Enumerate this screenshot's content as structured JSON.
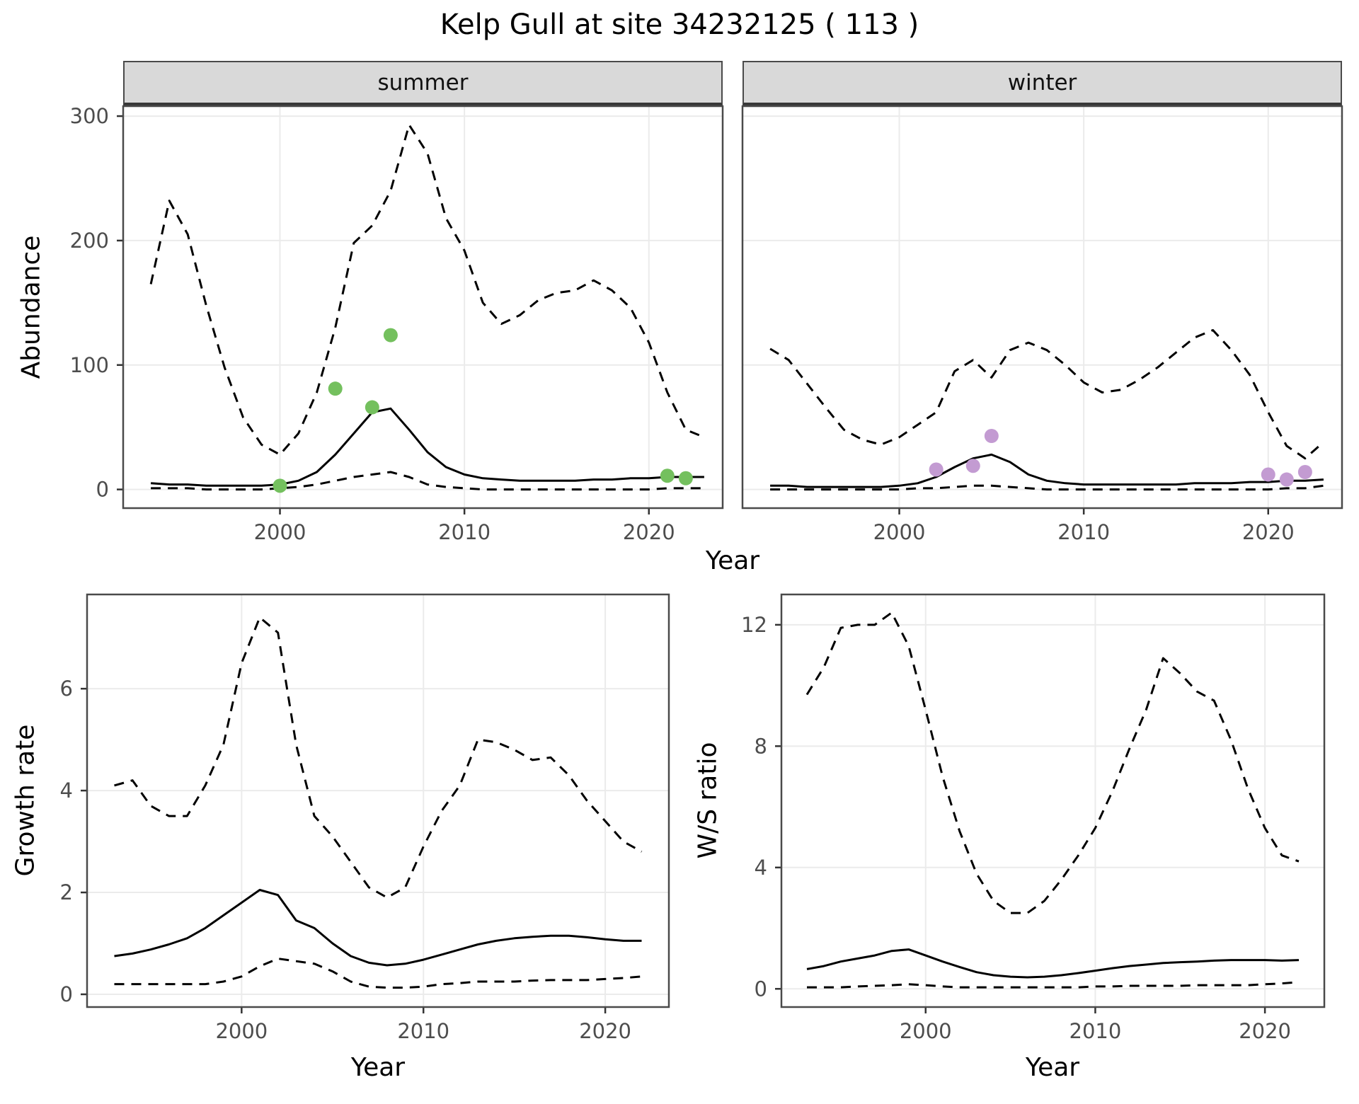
{
  "title": "Kelp Gull at site 34232125 ( 113 )",
  "axis_labels": {
    "abundance_y": "Abundance",
    "top_x": "Year",
    "growth_y": "Growth rate",
    "growth_x": "Year",
    "ws_y": "W/S ratio",
    "ws_x": "Year"
  },
  "colors": {
    "line": "#000000",
    "grid": "#ebebeb",
    "tick_text": "#4d4d4d",
    "tick_mark": "#333333",
    "panel_border": "#4a4a4a",
    "strip_background": "#d9d9d9"
  },
  "chart_data": [
    {
      "id": "abundance-summer",
      "type": "line",
      "facet_label": "summer",
      "xlabel": "Year",
      "ylabel": "Abundance",
      "xlim": [
        1991.5,
        2024
      ],
      "ylim": [
        -15,
        308
      ],
      "xticks": [
        2000,
        2010,
        2020
      ],
      "yticks": [
        0,
        100,
        200,
        300
      ],
      "grid": true,
      "x": [
        1993,
        1994,
        1995,
        1996,
        1997,
        1998,
        1999,
        2000,
        2001,
        2002,
        2003,
        2004,
        2005,
        2006,
        2007,
        2008,
        2009,
        2010,
        2011,
        2012,
        2013,
        2014,
        2015,
        2016,
        2017,
        2018,
        2019,
        2020,
        2021,
        2022,
        2023
      ],
      "series": [
        {
          "name": "upper-ci",
          "style": "dashed",
          "values": [
            165,
            232,
            205,
            148,
            98,
            58,
            36,
            28,
            45,
            78,
            130,
            198,
            212,
            240,
            293,
            270,
            218,
            192,
            150,
            133,
            140,
            152,
            158,
            160,
            168,
            160,
            146,
            118,
            78,
            48,
            42
          ]
        },
        {
          "name": "estimate",
          "style": "solid",
          "values": [
            5,
            4,
            4,
            3,
            3,
            3,
            3,
            4,
            7,
            14,
            28,
            45,
            62,
            65,
            48,
            30,
            18,
            12,
            9,
            8,
            7,
            7,
            7,
            7,
            8,
            8,
            9,
            9,
            10,
            10,
            10
          ]
        },
        {
          "name": "lower-ci",
          "style": "dashed",
          "values": [
            1,
            1,
            1,
            0,
            0,
            0,
            0,
            1,
            2,
            4,
            7,
            10,
            12,
            14,
            10,
            4,
            2,
            1,
            0,
            0,
            0,
            0,
            0,
            0,
            0,
            0,
            0,
            0,
            1,
            1,
            1
          ]
        }
      ],
      "points": {
        "name": "observed-counts-summer",
        "color": "#74c05e",
        "data": [
          [
            2000,
            3
          ],
          [
            2003,
            81
          ],
          [
            2005,
            66
          ],
          [
            2006,
            124
          ],
          [
            2021,
            11
          ],
          [
            2022,
            9
          ]
        ]
      }
    },
    {
      "id": "abundance-winter",
      "type": "line",
      "facet_label": "winter",
      "xlabel": "Year",
      "ylabel": "Abundance",
      "xlim": [
        1991.5,
        2024
      ],
      "ylim": [
        -15,
        308
      ],
      "xticks": [
        2000,
        2010,
        2020
      ],
      "yticks": [
        0,
        100,
        200,
        300
      ],
      "grid": true,
      "x": [
        1993,
        1994,
        1995,
        1996,
        1997,
        1998,
        1999,
        2000,
        2001,
        2002,
        2003,
        2004,
        2005,
        2006,
        2007,
        2008,
        2009,
        2010,
        2011,
        2012,
        2013,
        2014,
        2015,
        2016,
        2017,
        2018,
        2019,
        2020,
        2021,
        2022,
        2023
      ],
      "series": [
        {
          "name": "upper-ci",
          "style": "dashed",
          "values": [
            113,
            104,
            85,
            66,
            48,
            40,
            36,
            42,
            52,
            62,
            95,
            104,
            90,
            112,
            118,
            112,
            100,
            86,
            78,
            80,
            88,
            98,
            110,
            122,
            128,
            112,
            92,
            62,
            35,
            25,
            38
          ]
        },
        {
          "name": "estimate",
          "style": "solid",
          "values": [
            3,
            3,
            2,
            2,
            2,
            2,
            2,
            3,
            5,
            10,
            18,
            25,
            28,
            22,
            12,
            7,
            5,
            4,
            4,
            4,
            4,
            4,
            4,
            5,
            5,
            5,
            6,
            6,
            7,
            7,
            8
          ]
        },
        {
          "name": "lower-ci",
          "style": "dashed",
          "values": [
            0,
            0,
            0,
            0,
            0,
            0,
            0,
            0,
            1,
            1,
            2,
            3,
            3,
            2,
            1,
            0,
            0,
            0,
            0,
            0,
            0,
            0,
            0,
            0,
            0,
            0,
            0,
            0,
            1,
            1,
            3
          ]
        }
      ],
      "points": {
        "name": "observed-counts-winter",
        "color": "#c39bd2",
        "data": [
          [
            2002,
            16
          ],
          [
            2004,
            19
          ],
          [
            2005,
            43
          ],
          [
            2020,
            12
          ],
          [
            2021,
            8
          ],
          [
            2022,
            14
          ]
        ]
      }
    },
    {
      "id": "growth-rate",
      "type": "line",
      "facet_label": null,
      "xlabel": "Year",
      "ylabel": "Growth rate",
      "xlim": [
        1991.5,
        2023.5
      ],
      "ylim": [
        -0.25,
        7.85
      ],
      "xticks": [
        2000,
        2010,
        2020
      ],
      "yticks": [
        0,
        2,
        4,
        6
      ],
      "grid": true,
      "x": [
        1993,
        1994,
        1995,
        1996,
        1997,
        1998,
        1999,
        2000,
        2001,
        2002,
        2003,
        2004,
        2005,
        2006,
        2007,
        2008,
        2009,
        2010,
        2011,
        2012,
        2013,
        2014,
        2015,
        2016,
        2017,
        2018,
        2019,
        2020,
        2021,
        2022
      ],
      "series": [
        {
          "name": "upper-ci",
          "style": "dashed",
          "values": [
            4.1,
            4.2,
            3.7,
            3.5,
            3.5,
            4.1,
            4.9,
            6.5,
            7.4,
            7.1,
            4.9,
            3.5,
            3.1,
            2.6,
            2.1,
            1.9,
            2.1,
            2.9,
            3.6,
            4.1,
            5.0,
            4.95,
            4.8,
            4.6,
            4.65,
            4.3,
            3.8,
            3.4,
            3.0,
            2.8
          ]
        },
        {
          "name": "estimate",
          "style": "solid",
          "values": [
            0.75,
            0.8,
            0.88,
            0.98,
            1.1,
            1.3,
            1.55,
            1.8,
            2.05,
            1.95,
            1.45,
            1.3,
            1.0,
            0.75,
            0.62,
            0.57,
            0.6,
            0.68,
            0.78,
            0.88,
            0.98,
            1.05,
            1.1,
            1.13,
            1.15,
            1.15,
            1.12,
            1.08,
            1.05,
            1.05
          ]
        },
        {
          "name": "lower-ci",
          "style": "dashed",
          "values": [
            0.2,
            0.2,
            0.2,
            0.2,
            0.2,
            0.2,
            0.25,
            0.35,
            0.55,
            0.7,
            0.65,
            0.6,
            0.45,
            0.25,
            0.15,
            0.13,
            0.13,
            0.15,
            0.2,
            0.22,
            0.25,
            0.25,
            0.25,
            0.27,
            0.28,
            0.28,
            0.28,
            0.3,
            0.32,
            0.35
          ]
        }
      ],
      "points": null
    },
    {
      "id": "ws-ratio",
      "type": "line",
      "facet_label": null,
      "xlabel": "Year",
      "ylabel": "W/S ratio",
      "xlim": [
        1991.5,
        2023.5
      ],
      "ylim": [
        -0.6,
        13.0
      ],
      "xticks": [
        2000,
        2010,
        2020
      ],
      "yticks": [
        0,
        4,
        8,
        12
      ],
      "grid": true,
      "x": [
        1993,
        1994,
        1995,
        1996,
        1997,
        1998,
        1999,
        2000,
        2001,
        2002,
        2003,
        2004,
        2005,
        2006,
        2007,
        2008,
        2009,
        2010,
        2011,
        2012,
        2013,
        2014,
        2015,
        2016,
        2017,
        2018,
        2019,
        2020,
        2021,
        2022
      ],
      "series": [
        {
          "name": "upper-ci",
          "style": "dashed",
          "values": [
            9.7,
            10.6,
            11.9,
            12.0,
            12.0,
            12.4,
            11.3,
            9.2,
            7.0,
            5.2,
            3.8,
            2.9,
            2.5,
            2.5,
            2.9,
            3.6,
            4.4,
            5.3,
            6.5,
            7.9,
            9.2,
            10.9,
            10.4,
            9.8,
            9.5,
            8.2,
            6.6,
            5.3,
            4.4,
            4.2
          ]
        },
        {
          "name": "estimate",
          "style": "solid",
          "values": [
            0.65,
            0.75,
            0.9,
            1.0,
            1.1,
            1.25,
            1.3,
            1.1,
            0.9,
            0.72,
            0.55,
            0.45,
            0.4,
            0.38,
            0.4,
            0.45,
            0.52,
            0.6,
            0.68,
            0.75,
            0.8,
            0.85,
            0.88,
            0.9,
            0.93,
            0.95,
            0.95,
            0.95,
            0.93,
            0.95
          ]
        },
        {
          "name": "lower-ci",
          "style": "dashed",
          "values": [
            0.05,
            0.05,
            0.05,
            0.08,
            0.1,
            0.12,
            0.15,
            0.12,
            0.08,
            0.05,
            0.05,
            0.05,
            0.05,
            0.05,
            0.05,
            0.05,
            0.05,
            0.08,
            0.08,
            0.1,
            0.1,
            0.1,
            0.1,
            0.12,
            0.12,
            0.12,
            0.12,
            0.15,
            0.18,
            0.22
          ]
        }
      ],
      "points": null
    }
  ]
}
